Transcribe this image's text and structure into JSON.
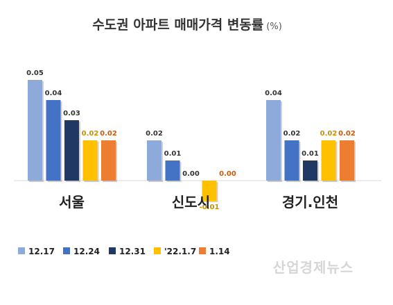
{
  "watermark": "산업경제뉴스",
  "chart_data": {
    "type": "bar",
    "title": "수도권 아파트 매매가격 변동률",
    "unit": "(%)",
    "categories": [
      "서울",
      "신도시",
      "경기.인천"
    ],
    "series": [
      {
        "name": "12.17",
        "color": "#8eaadb",
        "values": [
          0.05,
          0.02,
          0.04
        ]
      },
      {
        "name": "12.24",
        "color": "#4472c4",
        "values": [
          0.04,
          0.01,
          0.02
        ]
      },
      {
        "name": "12.31",
        "color": "#203864",
        "values": [
          0.03,
          0.0,
          0.01
        ]
      },
      {
        "name": "'22.1.7",
        "color": "#ffc000",
        "values": [
          0.02,
          -0.01,
          0.02
        ]
      },
      {
        "name": "1.14",
        "color": "#ed7d31",
        "values": [
          0.02,
          0.0,
          0.02
        ]
      }
    ],
    "value_labels": [
      [
        "0.05",
        "0.02",
        "0.04"
      ],
      [
        "0.04",
        "0.01",
        "0.02"
      ],
      [
        "0.03",
        "0.00",
        "0.01"
      ],
      [
        "0.02",
        "-0.01",
        "0.02"
      ],
      [
        "0.02",
        "0.00",
        "0.02"
      ]
    ],
    "label_colors": [
      "#333333",
      "#333333",
      "#333333",
      "#c5900a",
      "#c55a11"
    ],
    "ylim": [
      -0.01,
      0.05
    ],
    "grid": false,
    "legend_position": "bottom-left"
  }
}
